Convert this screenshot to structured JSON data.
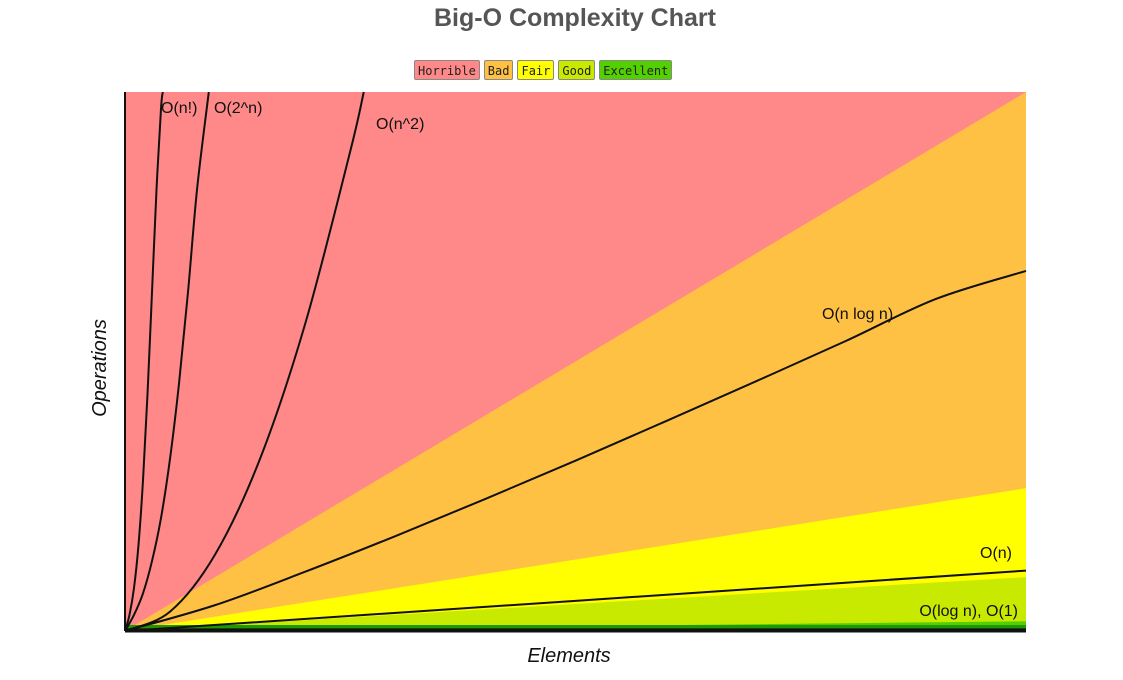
{
  "chart_data": {
    "type": "line",
    "title": "Big-O Complexity Chart",
    "xlabel": "Elements",
    "ylabel": "Operations",
    "xlim": [
      0,
      100
    ],
    "ylim": [
      0,
      100
    ],
    "legend_position": "top-center",
    "legend": [
      {
        "name": "Horrible",
        "color": "#ff8989"
      },
      {
        "name": "Bad",
        "color": "#ffc143"
      },
      {
        "name": "Fair",
        "color": "#ffff00"
      },
      {
        "name": "Good",
        "color": "#c8ea00"
      },
      {
        "name": "Excellent",
        "color": "#53d000"
      }
    ],
    "regions": [
      {
        "name": "Horrible",
        "color": "#ff8989",
        "slope": null
      },
      {
        "name": "Bad",
        "color": "#ffc143",
        "slope": 1.0
      },
      {
        "name": "Fair",
        "color": "#ffff00",
        "slope": 0.265
      },
      {
        "name": "Good",
        "color": "#c8ea00",
        "slope": 0.1
      },
      {
        "name": "Excellent",
        "color": "#53d000",
        "slope": 0.018
      }
    ],
    "series": [
      {
        "label": "O(n!)",
        "x": [
          0,
          0.5,
          1,
          1.5,
          2,
          2.5,
          3,
          3.5,
          4,
          4.2
        ],
        "y": [
          0,
          3,
          8,
          16,
          28,
          44,
          63,
          82,
          97,
          100
        ]
      },
      {
        "label": "O(2^n)",
        "x": [
          0,
          1,
          2,
          3,
          4,
          5,
          6,
          7,
          8,
          9.3
        ],
        "y": [
          0,
          3,
          7,
          13,
          21,
          32,
          46,
          63,
          82,
          100
        ]
      },
      {
        "label": "O(n^2)",
        "x": [
          0,
          5,
          10,
          15,
          20,
          25,
          26.5
        ],
        "y": [
          0,
          3.6,
          14.2,
          32,
          57,
          89,
          100
        ]
      },
      {
        "label": "O(n log n)",
        "x": [
          0,
          10,
          20,
          30,
          40,
          50,
          60,
          70,
          80,
          90,
          100
        ],
        "y": [
          0,
          4.8,
          11.0,
          17.6,
          24.5,
          31.6,
          38.9,
          46.3,
          53.8,
          61.6,
          66.8
        ]
      },
      {
        "label": "O(n)",
        "x": [
          0,
          100
        ],
        "y": [
          0,
          11.2
        ]
      },
      {
        "label": "O(log n), O(1)",
        "x": [
          0,
          100
        ],
        "y": [
          0.3,
          0.3
        ]
      }
    ]
  }
}
